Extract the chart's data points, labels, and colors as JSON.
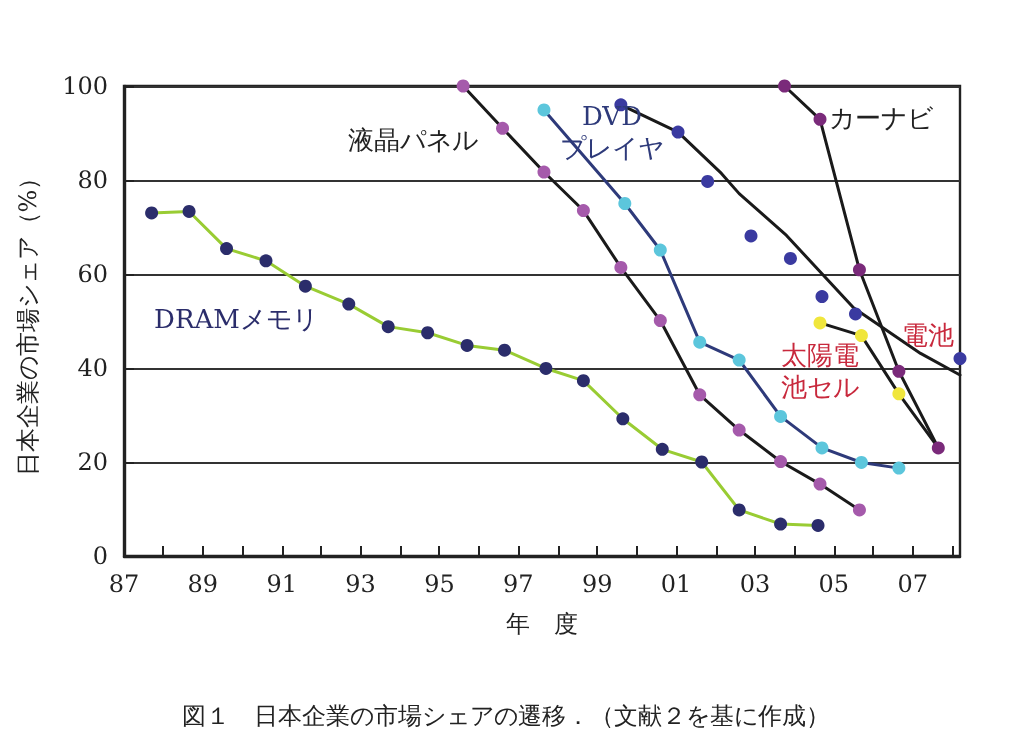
{
  "chart_data": {
    "type": "line",
    "xlabel": "年　度",
    "ylabel": "日本企業の市場シェア（%）",
    "xlim": [
      1987,
      2008.2
    ],
    "ylim": [
      0,
      100
    ],
    "xticks": [
      {
        "value": 1987,
        "label": "87"
      },
      {
        "value": 1988,
        "label": null
      },
      {
        "value": 1989,
        "label": "89"
      },
      {
        "value": 1990,
        "label": null
      },
      {
        "value": 1991,
        "label": "91"
      },
      {
        "value": 1992,
        "label": null
      },
      {
        "value": 1993,
        "label": "93"
      },
      {
        "value": 1994,
        "label": null
      },
      {
        "value": 1995,
        "label": "95"
      },
      {
        "value": 1996,
        "label": null
      },
      {
        "value": 1997,
        "label": "97"
      },
      {
        "value": 1998,
        "label": null
      },
      {
        "value": 1999,
        "label": "99"
      },
      {
        "value": 2000,
        "label": null
      },
      {
        "value": 2001,
        "label": "01"
      },
      {
        "value": 2002,
        "label": null
      },
      {
        "value": 2003,
        "label": "03"
      },
      {
        "value": 2004,
        "label": null
      },
      {
        "value": 2005,
        "label": "05"
      },
      {
        "value": 2006,
        "label": null
      },
      {
        "value": 2007,
        "label": "07"
      },
      {
        "value": 2008,
        "label": null
      }
    ],
    "yticks": [
      0,
      20,
      40,
      60,
      80,
      100
    ],
    "grid": "y",
    "series": [
      {
        "name": "DRAMメモリ",
        "marker": "circle",
        "color": "#99cc33",
        "colors": [
          "#2b2d6b",
          "#2b2d6b",
          "#2b2d6b",
          "#2b2d6b",
          "#2b2d6b",
          "#2b2d6b",
          "#2b2d6b",
          "#2b2d6b",
          "#2b2d6b",
          "#2b2d6b",
          "#2b2d6b",
          "#2b2d6b",
          "#2b2d6b",
          "#2b2d6b",
          "#2b2d6b",
          "#2b2d6b",
          "#2b2d6b",
          "#2b2d6b"
        ],
        "x": [
          1987.7,
          1988.65,
          1989.6,
          1990.6,
          1991.6,
          1992.7,
          1993.7,
          1994.7,
          1995.7,
          1996.65,
          1997.7,
          1998.65,
          1999.65,
          2000.65,
          2001.65,
          2002.6,
          2003.65,
          2004.6
        ],
        "values": [
          73,
          73.3,
          65.4,
          62.8,
          57.4,
          53.6,
          48.8,
          47.5,
          44.8,
          43.8,
          39.9,
          37.3,
          29.2,
          22.7,
          20,
          9.8,
          6.8,
          6.5
        ]
      },
      {
        "name": "液晶パネル",
        "marker": "circle",
        "color": "#1a1a1a",
        "colors": [
          "#a55aab",
          "#a55aab",
          "#a55aab",
          "#a55aab",
          "#a55aab",
          "#a55aab",
          "#a55aab",
          "#a55aab",
          "#a55aab",
          "#a55aab",
          "#a55aab"
        ],
        "x": [
          1995.6,
          1996.6,
          1997.65,
          1998.65,
          1999.6,
          2000.6,
          2001.6,
          2002.6,
          2003.65,
          2004.65,
          2005.65
        ],
        "values": [
          100,
          91,
          81.7,
          73.5,
          61.4,
          50.1,
          34.3,
          26.8,
          20.1,
          15.3,
          9.8
        ]
      },
      {
        "name": "DVDプレイヤ",
        "marker": "circle",
        "color": "#2e3a7a",
        "colors": [
          "#5cc6dc",
          "#5cc6dc",
          "#5cc6dc",
          "#5cc6dc",
          "#5cc6dc",
          "#5cc6dc",
          "#5cc6dc",
          "#5cc6dc",
          "#5cc6dc"
        ],
        "x": [
          1997.65,
          1999.7,
          2000.6,
          2001.6,
          2002.6,
          2003.65,
          2004.7,
          2005.7,
          2006.65
        ],
        "values": [
          94.9,
          75,
          65.1,
          45.5,
          41.7,
          29.7,
          23,
          19.9,
          18.7
        ]
      },
      {
        "name": "カーナビ",
        "marker": "circle",
        "color": "#1a1a1a",
        "colors": [
          "#7a2a7a",
          "#7a2a7a",
          "#7a2a7a",
          "#7a2a7a",
          "#7a2a7a"
        ],
        "x": [
          2003.75,
          2004.65,
          2005.65,
          2006.65,
          2007.65
        ],
        "values": [
          100,
          92.9,
          60.9,
          39.3,
          23
        ]
      },
      {
        "name": "太陽電池セル",
        "marker": "circle",
        "color": "#1a1a1a",
        "colors": [
          "#f0e63c",
          "#f0e63c",
          "#f0e63c",
          null
        ],
        "x": [
          2004.65,
          2005.7,
          2006.65,
          2007.65
        ],
        "values": [
          49.6,
          46.9,
          34.5,
          23
        ]
      },
      {
        "name": "電池",
        "marker": "none",
        "color": "#1a1a1a",
        "x": [
          1999.6,
          2001.05,
          2002.15,
          2002.6,
          2003.8,
          2005.5,
          2007.2,
          2008.2
        ],
        "values": [
          96,
          90.2,
          81.4,
          77.1,
          68.2,
          52.8,
          43.1,
          38.5
        ]
      },
      {
        "type": "scatter",
        "marker": "circle",
        "color": "#3a3aa0",
        "x": [
          1999.6,
          2001.05,
          2001.8,
          2002.9,
          2003.9,
          2004.7,
          2005.55,
          2008.2
        ],
        "values": [
          96,
          90.2,
          79.7,
          68.1,
          63.3,
          55.2,
          51.5,
          42
        ]
      }
    ],
    "annotations": [
      "図１　日本企業の市場シェアの遷移．（文献２を基に作成）"
    ]
  }
}
